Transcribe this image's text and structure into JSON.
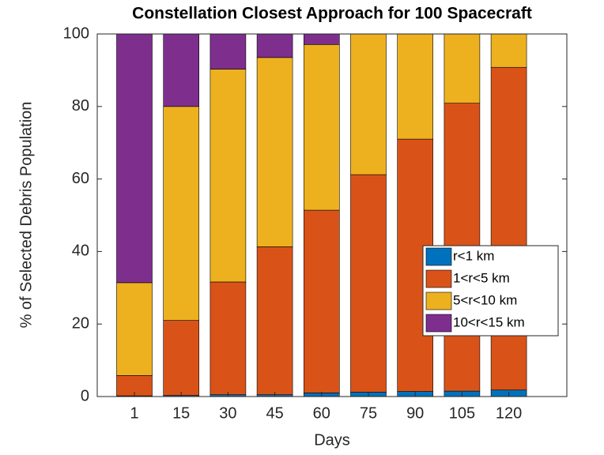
{
  "chart_data": {
    "type": "stacked_bar",
    "title": "Constellation Closest Approach for 100 Spacecraft",
    "x_label": "Days",
    "y_label": "% of Selected Debris Population",
    "categories": [
      "1",
      "15",
      "30",
      "45",
      "60",
      "75",
      "90",
      "105",
      "120"
    ],
    "series": [
      {
        "name": "r<1 km",
        "color": "#0072BD",
        "values": [
          0.2,
          0.3,
          0.5,
          0.5,
          1.0,
          1.2,
          1.4,
          1.5,
          1.8
        ]
      },
      {
        "name": "1<r<5 km",
        "color": "#D95319",
        "values": [
          5.6,
          20.7,
          31.1,
          40.8,
          50.4,
          60.0,
          69.6,
          79.4,
          89.0
        ]
      },
      {
        "name": "5<r<10 km",
        "color": "#EDB120",
        "values": [
          25.6,
          59.0,
          58.7,
          52.2,
          45.7,
          38.8,
          29.0,
          19.1,
          9.2
        ]
      },
      {
        "name": "10<r<15 km",
        "color": "#7E2F8E",
        "values": [
          68.6,
          20.0,
          9.7,
          6.5,
          2.9,
          0,
          0,
          0,
          0
        ]
      }
    ],
    "ylim": [
      0,
      100
    ],
    "yticks": [
      0,
      20,
      40,
      60,
      80,
      100
    ],
    "legend_location": "east"
  }
}
